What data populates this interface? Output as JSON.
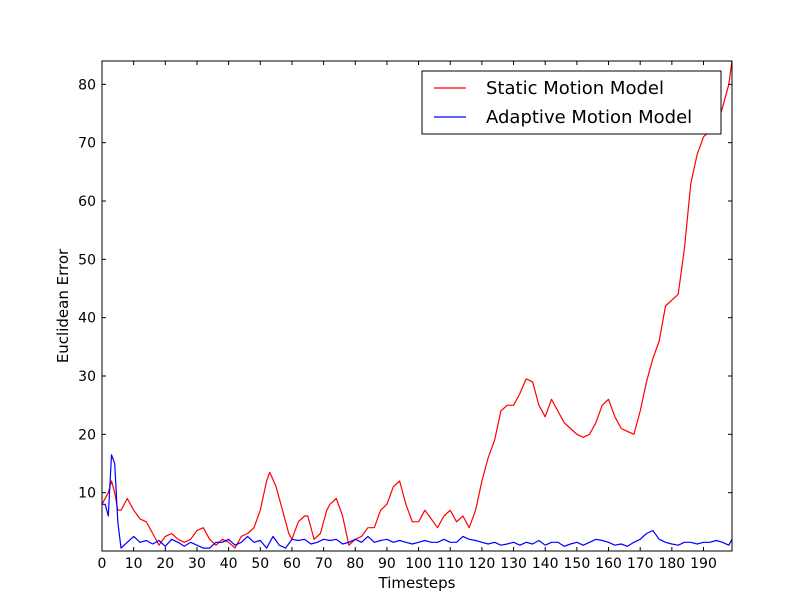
{
  "chart_data": {
    "type": "line",
    "title": "",
    "xlabel": "Timesteps",
    "ylabel": "Euclidean Error",
    "xlim": [
      0,
      199
    ],
    "ylim": [
      0,
      84
    ],
    "grid": false,
    "legend_position": "top-right",
    "x_ticks": [
      0,
      10,
      20,
      30,
      40,
      50,
      60,
      70,
      80,
      90,
      100,
      110,
      120,
      130,
      140,
      150,
      160,
      170,
      180,
      190
    ],
    "y_ticks": [
      10,
      20,
      30,
      40,
      50,
      60,
      70,
      80
    ],
    "series": [
      {
        "name": "Static Motion Model",
        "color": "#ff0000",
        "x": [
          0,
          2,
          3,
          4,
          5,
          6,
          8,
          10,
          12,
          14,
          16,
          18,
          20,
          22,
          24,
          26,
          28,
          30,
          32,
          34,
          36,
          38,
          40,
          42,
          44,
          46,
          48,
          50,
          52,
          53,
          55,
          57,
          59,
          60,
          62,
          64,
          65,
          67,
          69,
          71,
          72,
          74,
          76,
          78,
          80,
          82,
          84,
          86,
          88,
          90,
          92,
          94,
          96,
          98,
          100,
          102,
          104,
          106,
          108,
          110,
          112,
          114,
          116,
          118,
          120,
          122,
          124,
          126,
          128,
          130,
          132,
          134,
          136,
          138,
          140,
          142,
          144,
          146,
          148,
          150,
          152,
          154,
          156,
          158,
          160,
          162,
          164,
          166,
          168,
          170,
          172,
          174,
          176,
          178,
          180,
          182,
          184,
          186,
          188,
          190,
          192,
          194,
          196,
          198,
          199
        ],
        "values": [
          8,
          10,
          12,
          10,
          7,
          7,
          9,
          7,
          5.5,
          5,
          3,
          1,
          2.5,
          3,
          2,
          1.5,
          2,
          3.5,
          4,
          2,
          1,
          2,
          1.5,
          0.5,
          2.5,
          3,
          4,
          7,
          12,
          13.5,
          11,
          7,
          3,
          2,
          5,
          6,
          6,
          2,
          3,
          7,
          8,
          9,
          6,
          1,
          2,
          2.5,
          4,
          4,
          7,
          8,
          11,
          12,
          8,
          5,
          5,
          7,
          5.5,
          4,
          6,
          7,
          5,
          6,
          4,
          7,
          12,
          16,
          19,
          24,
          25,
          25,
          27,
          29.5,
          29,
          25,
          23,
          26,
          24,
          22,
          21,
          20,
          19.5,
          20,
          22,
          25,
          26,
          23,
          21,
          20.5,
          20,
          24,
          29,
          33,
          36,
          42,
          43,
          44,
          52,
          63,
          68,
          71,
          72,
          73,
          76,
          80,
          84
        ]
      },
      {
        "name": "Adaptive Motion Model",
        "color": "#0000ff",
        "x": [
          0,
          1,
          2,
          3,
          4,
          5,
          6,
          8,
          10,
          12,
          14,
          16,
          18,
          20,
          22,
          24,
          26,
          28,
          30,
          32,
          34,
          36,
          38,
          40,
          42,
          44,
          46,
          48,
          50,
          52,
          54,
          56,
          58,
          60,
          62,
          64,
          66,
          68,
          70,
          72,
          74,
          76,
          78,
          80,
          82,
          84,
          86,
          88,
          90,
          92,
          94,
          96,
          98,
          100,
          102,
          104,
          106,
          108,
          110,
          112,
          114,
          116,
          118,
          120,
          122,
          124,
          126,
          128,
          130,
          132,
          134,
          136,
          138,
          140,
          142,
          144,
          146,
          148,
          150,
          152,
          154,
          156,
          158,
          160,
          162,
          164,
          166,
          168,
          170,
          172,
          174,
          176,
          178,
          180,
          182,
          184,
          186,
          188,
          190,
          192,
          194,
          196,
          198,
          199
        ],
        "values": [
          8,
          8,
          6,
          16.5,
          15,
          5,
          0.5,
          1.5,
          2.5,
          1.5,
          1.8,
          1.2,
          1.8,
          0.8,
          2,
          1.5,
          0.8,
          1.5,
          1,
          0.5,
          0.5,
          1.5,
          1.5,
          2,
          1,
          1.5,
          2.5,
          1.5,
          1.8,
          0.5,
          2.5,
          1,
          0.5,
          2,
          1.8,
          2,
          1.2,
          1.5,
          2,
          1.8,
          2,
          1.2,
          1.5,
          2,
          1.5,
          2.5,
          1.5,
          1.8,
          2,
          1.5,
          1.8,
          1.5,
          1.2,
          1.5,
          1.8,
          1.5,
          1.5,
          2,
          1.5,
          1.5,
          2.5,
          2,
          1.8,
          1.5,
          1.2,
          1.5,
          1,
          1.2,
          1.5,
          1,
          1.5,
          1.2,
          1.8,
          1,
          1.5,
          1.5,
          0.8,
          1.2,
          1.5,
          1,
          1.5,
          2,
          1.8,
          1.5,
          1,
          1.2,
          0.8,
          1.5,
          2,
          3,
          3.5,
          2,
          1.5,
          1.2,
          1,
          1.5,
          1.5,
          1.2,
          1.5,
          1.5,
          1.8,
          1.5,
          1,
          2
        ]
      }
    ]
  }
}
